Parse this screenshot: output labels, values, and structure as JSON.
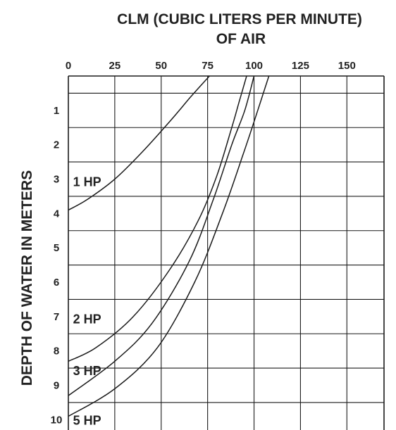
{
  "chart_data": {
    "type": "line",
    "title_line1": "CLM (CUBIC LITERS PER MINUTE)",
    "title_line2": "OF AIR",
    "ylabel": "DEPTH OF WATER IN METERS",
    "x_ticks": [
      "0",
      "25",
      "50",
      "75",
      "100",
      "125",
      "150"
    ],
    "y_ticks": [
      "1",
      "2",
      "3",
      "4",
      "5",
      "6",
      "7",
      "8",
      "9",
      "10"
    ],
    "xlim": [
      0,
      170
    ],
    "ylim": [
      0,
      10.3
    ],
    "grid": true,
    "series": [
      {
        "name": "1 HP",
        "points": [
          [
            0,
            3.9
          ],
          [
            10,
            3.6
          ],
          [
            25,
            3.0
          ],
          [
            40,
            2.2
          ],
          [
            55,
            1.3
          ],
          [
            66,
            0.6
          ],
          [
            76,
            0.0
          ]
        ]
      },
      {
        "name": "2 HP",
        "points": [
          [
            0,
            8.3
          ],
          [
            15,
            7.9
          ],
          [
            35,
            7.0
          ],
          [
            55,
            5.6
          ],
          [
            70,
            4.2
          ],
          [
            80,
            2.9
          ],
          [
            88,
            1.5
          ],
          [
            92,
            0.75
          ],
          [
            96,
            0.0
          ]
        ]
      },
      {
        "name": "3 HP",
        "points": [
          [
            0,
            9.3
          ],
          [
            25,
            8.3
          ],
          [
            45,
            7.2
          ],
          [
            65,
            5.4
          ],
          [
            78,
            3.6
          ],
          [
            88,
            2.0
          ],
          [
            95,
            1.0
          ],
          [
            100,
            0.0
          ]
        ]
      },
      {
        "name": "5 HP",
        "points": [
          [
            0,
            9.9
          ],
          [
            25,
            9.1
          ],
          [
            48,
            7.9
          ],
          [
            68,
            6.0
          ],
          [
            83,
            4.0
          ],
          [
            94,
            2.3
          ],
          [
            102,
            1.0
          ],
          [
            108,
            0.0
          ]
        ]
      }
    ]
  }
}
